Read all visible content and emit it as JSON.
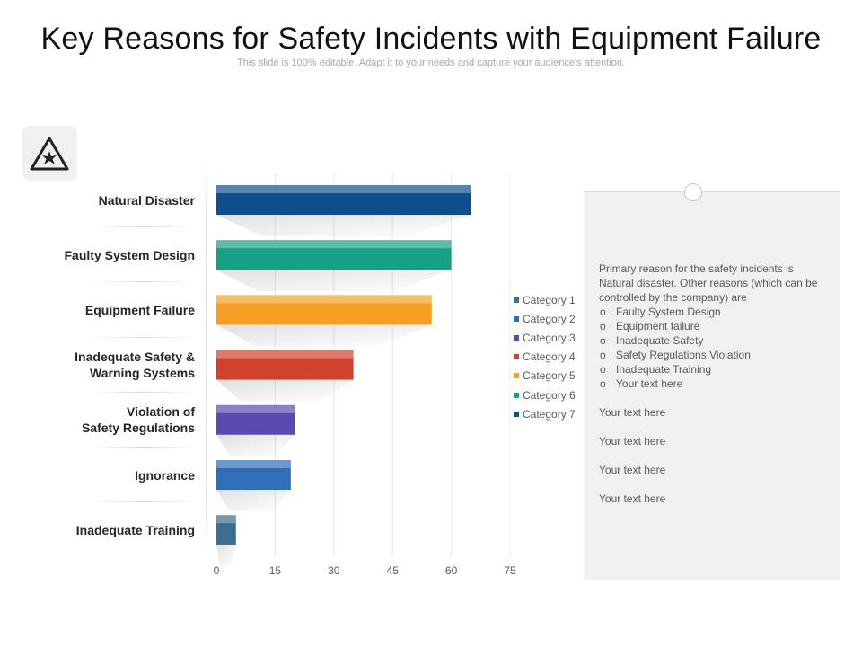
{
  "header": {
    "title": "Key Reasons for Safety Incidents with Equipment Failure",
    "subtitle": "This slide is 100% editable. Adapt it to your needs and capture your audience's attention."
  },
  "icon": {
    "name": "hazard-warning-icon"
  },
  "chart_data": {
    "type": "bar",
    "orientation": "horizontal",
    "categories": [
      "Natural Disaster",
      "Faulty System Design",
      "Equipment Failure",
      "Inadequate Safety &\nWarning Systems",
      "Violation of\nSafety Regulations",
      "Ignorance",
      "Inadequate Training"
    ],
    "values": [
      65,
      60,
      55,
      35,
      20,
      19,
      5
    ],
    "bar_colors": [
      "#0d4f8b",
      "#16a085",
      "#f5a025",
      "#d0412e",
      "#5a4bb0",
      "#2f6fb8",
      "#3b6e8f"
    ],
    "xticks": [
      0,
      15,
      30,
      45,
      60,
      75
    ],
    "xlim": [
      0,
      75
    ],
    "title": "",
    "xlabel": "",
    "ylabel": "",
    "grid": true,
    "legend_position": "right",
    "legend": [
      {
        "label": "Category 1",
        "color": "#3b6e8f"
      },
      {
        "label": "Category 2",
        "color": "#2f6fb8"
      },
      {
        "label": "Category 3",
        "color": "#5a4bb0"
      },
      {
        "label": "Category 4",
        "color": "#d0412e"
      },
      {
        "label": "Category 5",
        "color": "#f5a025"
      },
      {
        "label": "Category 6",
        "color": "#16a085"
      },
      {
        "label": "Category 7",
        "color": "#0d4f8b"
      }
    ]
  },
  "panel": {
    "intro": "Primary reason for the safety incidents is Natural disaster. Other reasons (which can be controlled by the company) are",
    "items": [
      "Faulty System Design",
      "Equipment failure",
      "Inadequate  Safety",
      "Safety Regulations  Violation",
      "Inadequate  Training",
      "Your text here"
    ],
    "extra": [
      "Your text here",
      "Your text here",
      "Your text here",
      "Your text here"
    ]
  }
}
